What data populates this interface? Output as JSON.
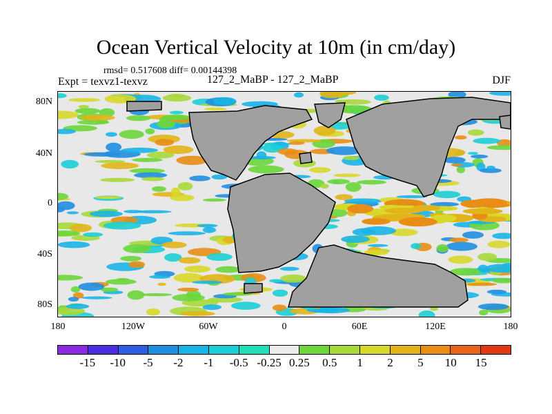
{
  "title": "Ocean Vertical Velocity at 10m (in cm/day)",
  "stats": "rmsd= 0.517608 diff= 0.00144398",
  "expt": "Expt = texvz1-texvz",
  "run": "127_2_MaBP - 127_2_MaBP",
  "season": "DJF",
  "map": {
    "lat_ticks": [
      "80N",
      "40N",
      "0",
      "40S",
      "80S"
    ],
    "lon_ticks": [
      "180",
      "120W",
      "60W",
      "0",
      "60E",
      "120E",
      "180"
    ],
    "land_color": "#a0a0a0",
    "ocean_background": "#e8e8e8"
  },
  "colorbar": {
    "colors": [
      "#8a2be2",
      "#4b2ee0",
      "#2f5fe0",
      "#1f8fe0",
      "#19b4e6",
      "#1ccfd6",
      "#1fe0b8",
      "#ececec",
      "#6cd63a",
      "#a8d83a",
      "#d8d82a",
      "#e2b41a",
      "#e88e16",
      "#e8641a",
      "#e03a14"
    ],
    "labels": [
      "-15",
      "-10",
      "-5",
      "-2",
      "-1",
      "-0.5",
      "-0.25",
      "0.25",
      "0.5",
      "1",
      "2",
      "5",
      "10",
      "15"
    ]
  }
}
